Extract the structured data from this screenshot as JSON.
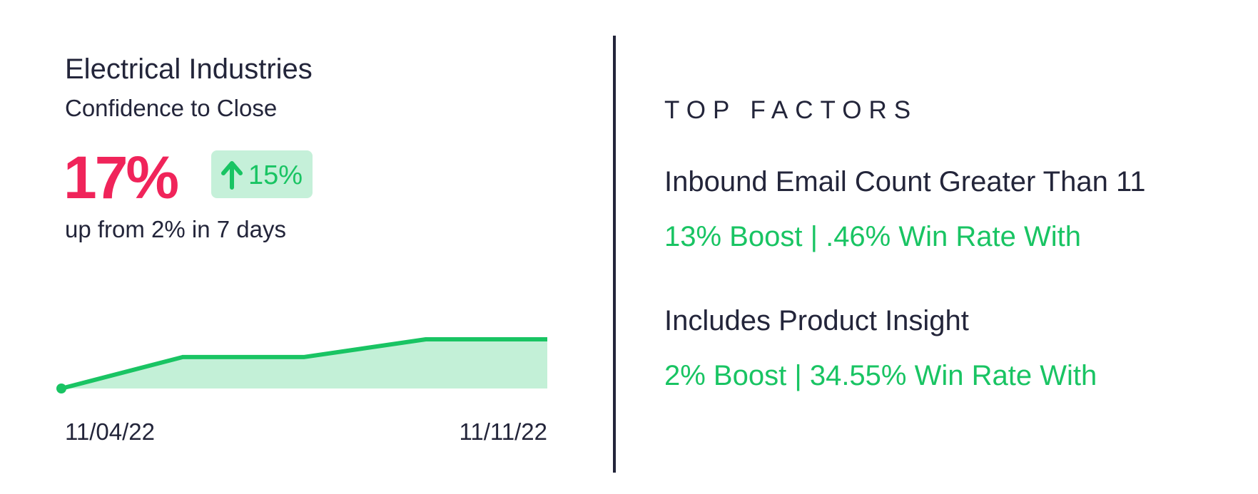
{
  "header": {
    "title": "Electrical Industries",
    "subtitle": "Confidence to Close"
  },
  "metric": {
    "value": "17%",
    "change": "15%",
    "note": "up from 2% in 7 days"
  },
  "chart_data": {
    "type": "line",
    "categories": [
      "11/04/22",
      null,
      null,
      null,
      "11/11/22"
    ],
    "values": [
      2,
      11.6,
      11.6,
      17,
      17
    ],
    "color": "#19c463",
    "area_color": "#c3f0d7"
  },
  "factors": {
    "title": "TOP FACTORS",
    "items": [
      {
        "name": "Inbound Email Count Greater Than 11",
        "stat": "13% Boost | .46% Win Rate With"
      },
      {
        "name": "Includes Product Insight",
        "stat": "2% Boost | 34.55% Win Rate With"
      }
    ]
  }
}
